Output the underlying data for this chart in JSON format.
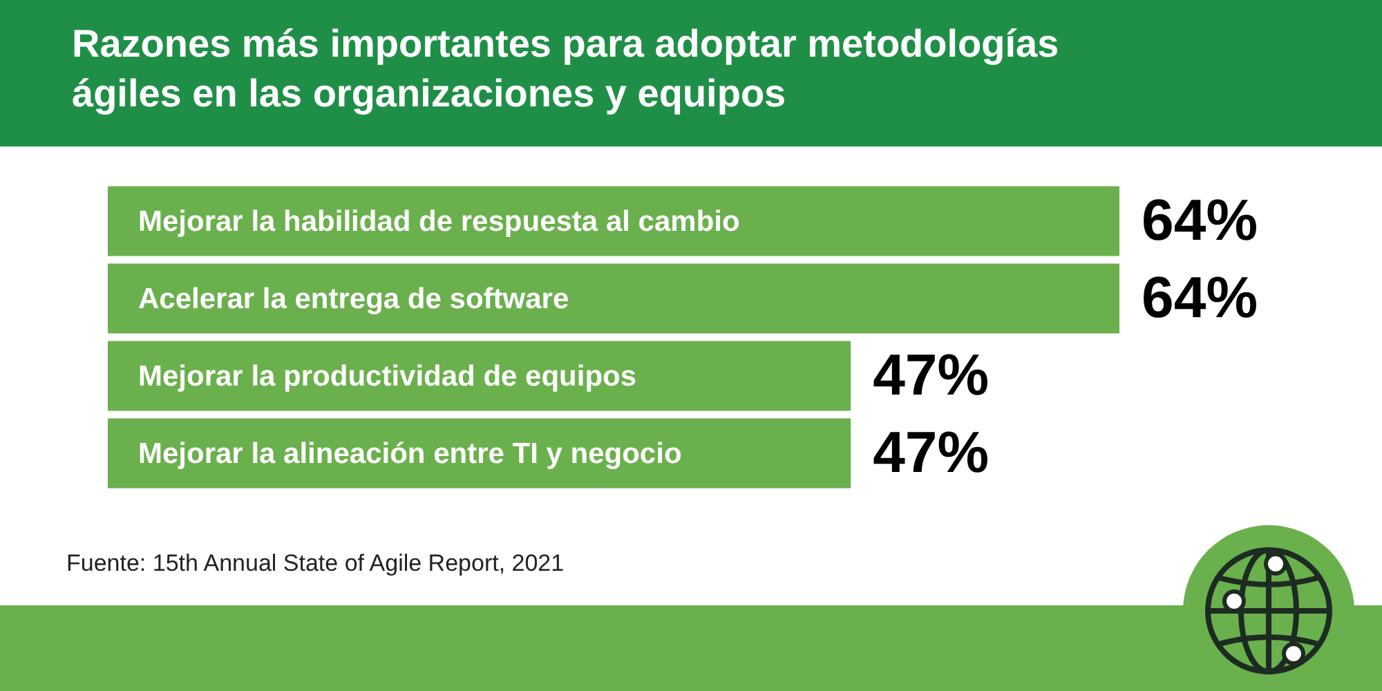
{
  "chart_data": {
    "type": "bar",
    "orientation": "horizontal",
    "title": "Razones más importantes para adoptar metodologías ágiles en las organizaciones y equipos",
    "categories": [
      "Mejorar la habilidad de respuesta al cambio",
      "Acelerar la entrega de software",
      "Mejorar la productividad de equipos",
      "Mejorar la alineación entre TI y negocio"
    ],
    "values": [
      64,
      64,
      47,
      47
    ],
    "value_labels": [
      "64%",
      "64%",
      "47%",
      "47%"
    ],
    "color": "#6ab04c",
    "xlim": [
      0,
      64
    ],
    "annotations": [
      "Fuente: 15th Annual State of Agile Report, 2021"
    ]
  }
}
